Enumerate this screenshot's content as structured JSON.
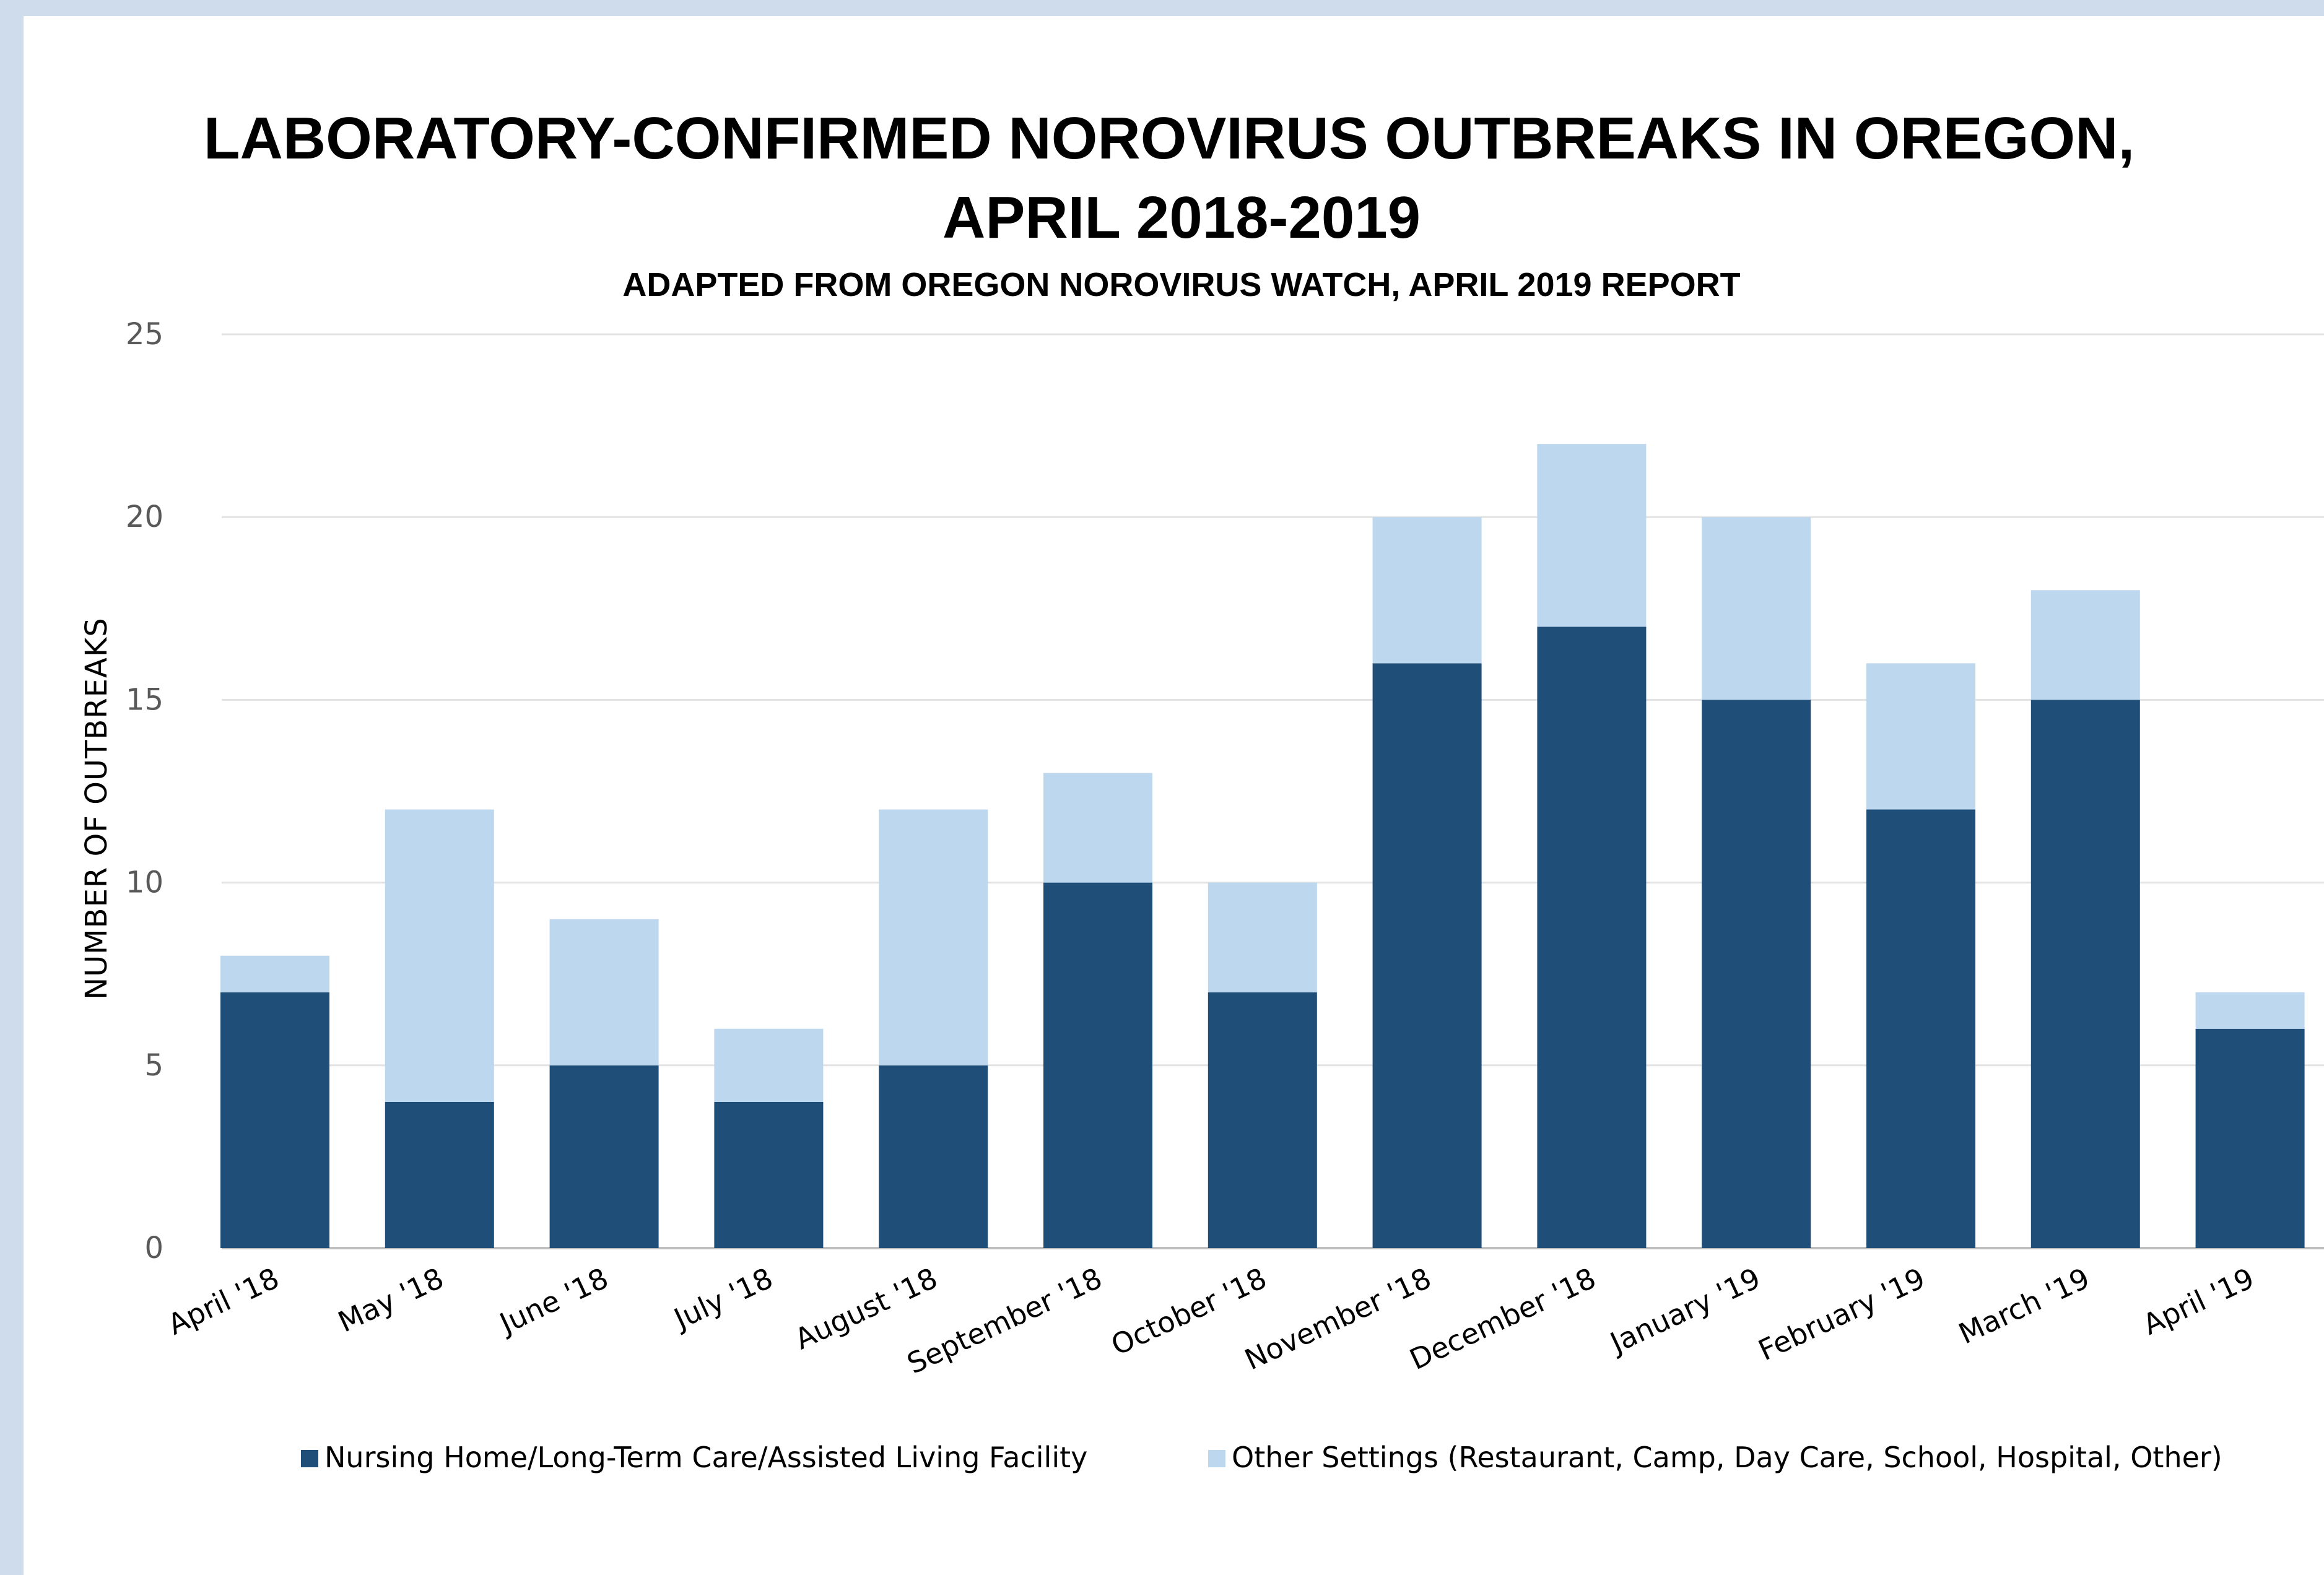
{
  "chart_data": {
    "type": "bar",
    "stacked": true,
    "title_line1": "LABORATORY-CONFIRMED NOROVIRUS OUTBREAKS IN OREGON,",
    "title_line2": "APRIL 2018-2019",
    "subtitle": "ADAPTED FROM OREGON NOROVIRUS WATCH, APRIL 2019 REPORT",
    "xlabel": "",
    "ylabel": "NUMBER OF OUTBREAKS",
    "ylim": [
      0,
      25
    ],
    "yticks": [
      0,
      5,
      10,
      15,
      20,
      25
    ],
    "grid": true,
    "legend_position": "bottom",
    "categories": [
      "April '18",
      "May '18",
      "June '18",
      "July '18",
      "August '18",
      "September '18",
      "October '18",
      "November '18",
      "December '18",
      "January '19",
      "February '19",
      "March '19",
      "April '19"
    ],
    "series": [
      {
        "name": "Nursing Home/Long-Term Care/Assisted Living Facility",
        "color": "#1f4e79",
        "values": [
          7,
          4,
          5,
          4,
          5,
          10,
          7,
          16,
          17,
          15,
          12,
          15,
          6
        ]
      },
      {
        "name": "Other Settings (Restaurant, Camp, Day Care, School, Hospital, Other)",
        "color": "#bdd7ee",
        "values": [
          1,
          8,
          4,
          2,
          7,
          3,
          3,
          4,
          5,
          5,
          4,
          3,
          1
        ]
      }
    ]
  }
}
